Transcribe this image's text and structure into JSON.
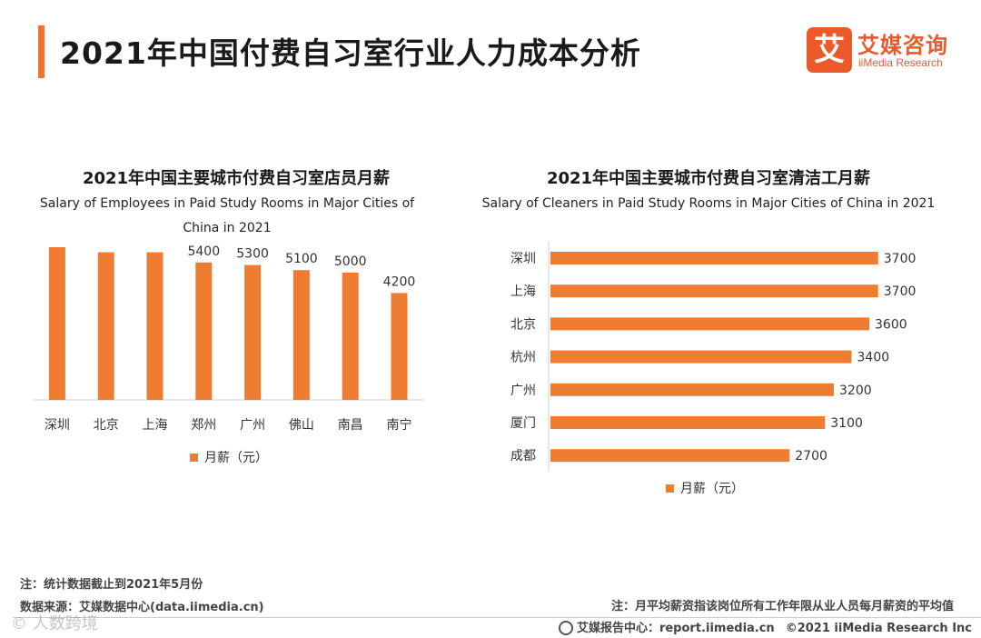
{
  "header": {
    "title": "2021年中国付费自习室行业人力成本分析",
    "logo_mark": "艾",
    "logo_cn": "艾媒咨询",
    "logo_en": "iiMedia Research"
  },
  "chart_data": [
    {
      "type": "bar",
      "title": "2021年中国主要城市付费自习室店员月薪",
      "subtitle": "Salary of Employees in Paid Study Rooms in Major Cities of China in 2021",
      "categories": [
        "深圳",
        "北京",
        "上海",
        "郑州",
        "广州",
        "佛山",
        "南昌",
        "南宁"
      ],
      "values": [
        6000,
        5800,
        5800,
        5400,
        5300,
        5100,
        5000,
        4200
      ],
      "legend": "月薪（元）",
      "ylim": [
        0,
        7000
      ],
      "color": "#ee7d31"
    },
    {
      "type": "bar",
      "orientation": "horizontal",
      "title": "2021年中国主要城市付费自习室清洁工月薪",
      "subtitle": "Salary of Cleaners in Paid Study Rooms in Major Cities of China in 2021",
      "categories": [
        "深圳",
        "上海",
        "北京",
        "杭州",
        "广州",
        "厦门",
        "成都"
      ],
      "values": [
        3700,
        3700,
        3600,
        3400,
        3200,
        3100,
        2700
      ],
      "legend": "月薪（元）",
      "xlim": [
        0,
        4000
      ],
      "color": "#ee7d31"
    }
  ],
  "notes": {
    "left_note": "注：统计数据截止到2021年5月份",
    "source": "数据来源：艾媒数据中心(data.iimedia.cn)",
    "right_note": "注：月平均薪资指该岗位所有工作年限从业人员每月薪资的平均值"
  },
  "footer": {
    "report": "艾媒报告中心：report.iimedia.cn",
    "copyright": "©2021  iiMedia Research  Inc"
  },
  "watermark": "©  人数跨境"
}
